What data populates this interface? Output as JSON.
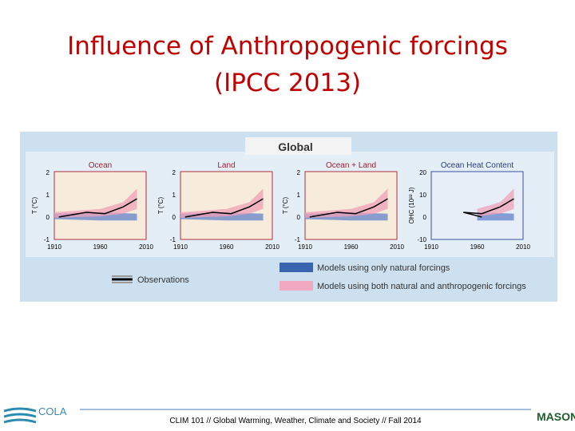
{
  "title": {
    "line1": "Influence of Anthropogenic forcings",
    "line2": "(IPCC 2013)"
  },
  "figure": {
    "heading": "Global",
    "panels": [
      {
        "title": "Ocean",
        "y_label": "T (°C)",
        "y_tick_labels": [
          "2",
          "1",
          "0",
          "-1"
        ],
        "x_tick_labels": [
          "1910",
          "1960",
          "2010"
        ]
      },
      {
        "title": "Land",
        "y_label": "T (°C)",
        "y_tick_labels": [
          "2",
          "1",
          "0",
          "-1"
        ],
        "x_tick_labels": [
          "1910",
          "1960",
          "2010"
        ]
      },
      {
        "title": "Ocean + Land",
        "y_label": "T (°C)",
        "y_tick_labels": [
          "2",
          "1",
          "0",
          "-1"
        ],
        "x_tick_labels": [
          "1910",
          "1960",
          "2010"
        ]
      },
      {
        "title": "Ocean Heat Content",
        "y_label": "OHC (10²² J)",
        "y_tick_labels": [
          "20",
          "10",
          "0",
          "-10"
        ],
        "x_tick_labels": [
          "1910",
          "1960",
          "2010"
        ]
      }
    ],
    "legend": {
      "observations": "Observations",
      "natural": "Models using only natural forcings",
      "both": "Models using both natural and anthropogenic forcings"
    }
  },
  "footer": {
    "text": "CLIM 101 // Global Warming, Weather, Climate and Society // Fall 2014",
    "left_logo": "COLA",
    "right_logo": "MASON"
  }
}
